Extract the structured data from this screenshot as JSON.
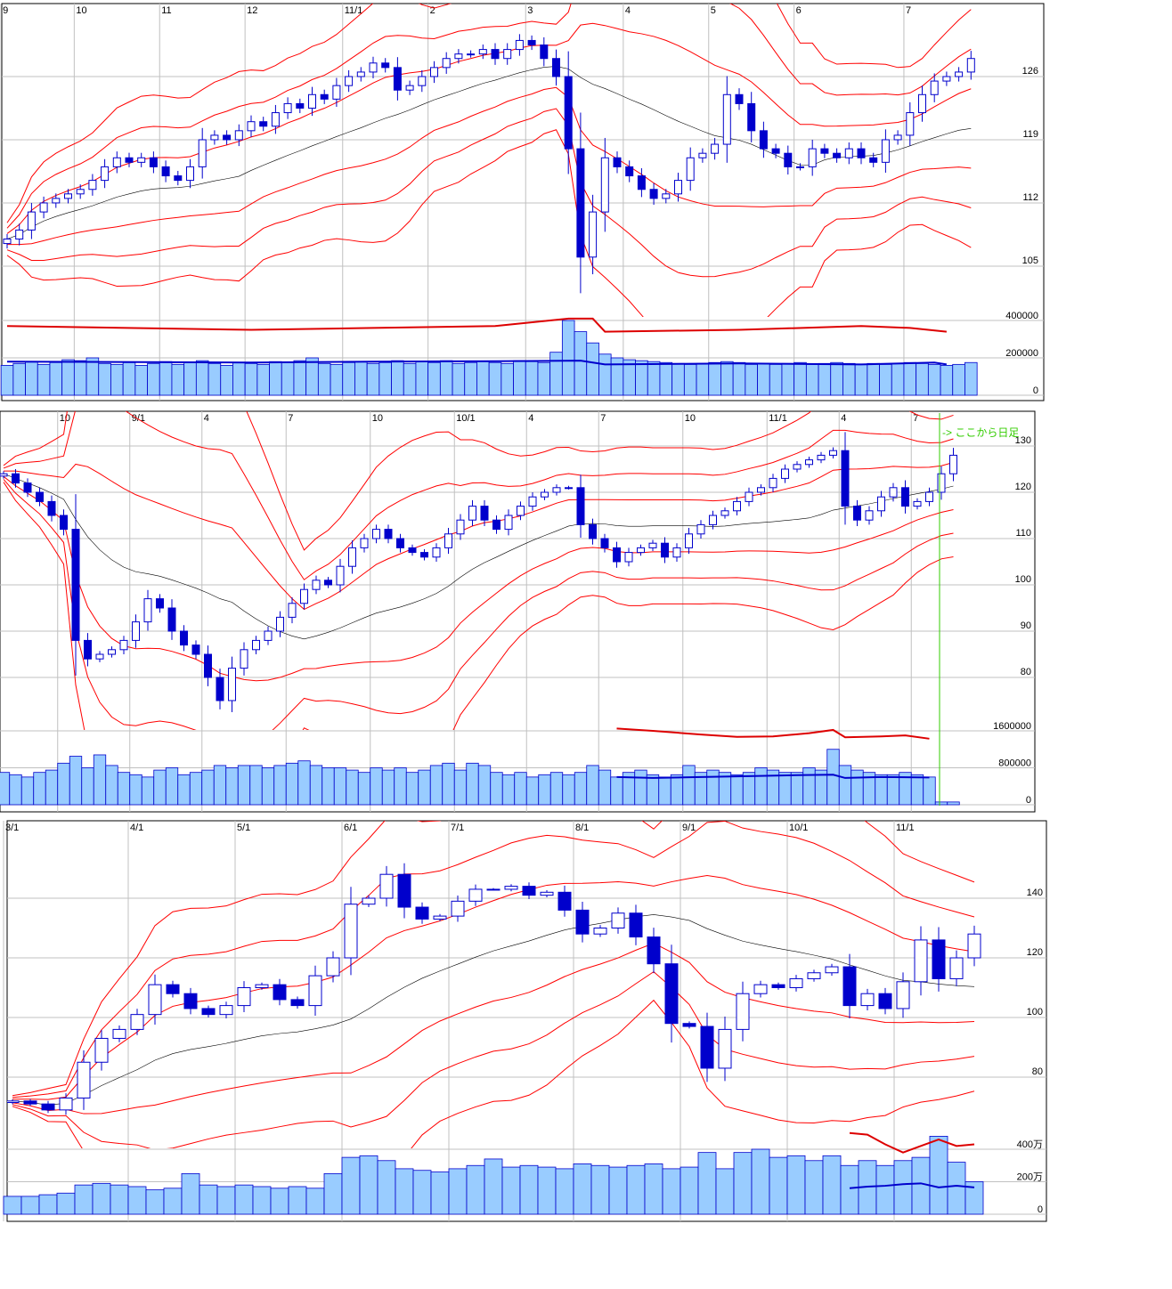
{
  "chart_data": [
    {
      "type": "candlestick",
      "title": "",
      "grid": true,
      "price_ticks": [
        126,
        119,
        112,
        105
      ],
      "volume_ticks": [
        {
          "v": 400000,
          "label": "400000"
        },
        {
          "v": 200000,
          "label": "200000"
        },
        {
          "v": 0,
          "label": "0"
        }
      ],
      "date_labels": [
        {
          "label": "9",
          "index": 0
        },
        {
          "label": "10",
          "index": 6
        },
        {
          "label": "11",
          "index": 13
        },
        {
          "label": "12",
          "index": 20
        },
        {
          "label": "11/1",
          "index": 28
        },
        {
          "label": "2",
          "index": 35
        },
        {
          "label": "3",
          "index": 43
        },
        {
          "label": "4",
          "index": 51
        },
        {
          "label": "5",
          "index": 58
        },
        {
          "label": "6",
          "index": 65
        },
        {
          "label": "7",
          "index": 74
        }
      ],
      "close": [
        108,
        109,
        111,
        112,
        112.5,
        113,
        113.5,
        114.5,
        116,
        117,
        116.5,
        117,
        116,
        115,
        114.5,
        116,
        119,
        119.5,
        119,
        120,
        121,
        120.5,
        122,
        123,
        122.5,
        124,
        123.5,
        125,
        126,
        126.5,
        127.5,
        127,
        124.5,
        125,
        126,
        127,
        128,
        128.5,
        128.5,
        129,
        128,
        129,
        130,
        129.5,
        128,
        126,
        118,
        106,
        111,
        117,
        116,
        115,
        113.5,
        112.5,
        113,
        114.5,
        117,
        117.5,
        118.5,
        124,
        123,
        120,
        118,
        117.5,
        116,
        116,
        118,
        117.5,
        117,
        118,
        117,
        116.5,
        119,
        119.5,
        122,
        124,
        125.5,
        126,
        126.5,
        128
      ],
      "volume": [
        160000,
        170000,
        180000,
        165000,
        175000,
        190000,
        185000,
        200000,
        170000,
        165000,
        175000,
        160000,
        170000,
        180000,
        165000,
        175000,
        185000,
        170000,
        160000,
        175000,
        170000,
        165000,
        180000,
        175000,
        185000,
        200000,
        170000,
        165000,
        175000,
        180000,
        170000,
        175000,
        185000,
        170000,
        180000,
        175000,
        185000,
        170000,
        175000,
        180000,
        175000,
        170000,
        185000,
        180000,
        175000,
        230000,
        400000,
        340000,
        280000,
        220000,
        200000,
        190000,
        185000,
        180000,
        175000,
        170000,
        165000,
        170000,
        175000,
        180000,
        175000,
        165000,
        170000,
        165000,
        170000,
        175000,
        165000,
        170000,
        175000,
        170000,
        165000,
        170000,
        165000,
        170000,
        175000,
        170000,
        165000,
        160000,
        165000,
        175000
      ],
      "volume_line_red": [
        [
          0,
          370000
        ],
        [
          20,
          350000
        ],
        [
          30,
          360000
        ],
        [
          40,
          370000
        ],
        [
          46,
          410000
        ],
        [
          48,
          410000
        ],
        [
          49,
          340000
        ],
        [
          60,
          350000
        ],
        [
          70,
          370000
        ],
        [
          74,
          360000
        ],
        [
          77,
          340000
        ]
      ],
      "volume_line_blue": [
        [
          0,
          180000
        ],
        [
          20,
          175000
        ],
        [
          30,
          180000
        ],
        [
          40,
          182000
        ],
        [
          47,
          185000
        ],
        [
          49,
          165000
        ],
        [
          60,
          170000
        ],
        [
          70,
          165000
        ],
        [
          76,
          175000
        ],
        [
          77,
          165000
        ]
      ],
      "ylim": [
        101,
        131
      ]
    },
    {
      "type": "candlestick",
      "title": "",
      "grid": true,
      "price_ticks": [
        130,
        120,
        110,
        100,
        90,
        80
      ],
      "volume_ticks": [
        {
          "v": 1600000,
          "label": "1600000"
        },
        {
          "v": 800000,
          "label": "800000"
        },
        {
          "v": 0,
          "label": "0"
        }
      ],
      "date_labels": [
        {
          "label": "10",
          "index": 5
        },
        {
          "label": "9/1",
          "index": 11
        },
        {
          "label": "4",
          "index": 17
        },
        {
          "label": "7",
          "index": 24
        },
        {
          "label": "10",
          "index": 31
        },
        {
          "label": "10/1",
          "index": 38
        },
        {
          "label": "4",
          "index": 44
        },
        {
          "label": "7",
          "index": 50
        },
        {
          "label": "10",
          "index": 57
        },
        {
          "label": "11/1",
          "index": 64
        },
        {
          "label": "4",
          "index": 70
        },
        {
          "label": "7",
          "index": 76
        }
      ],
      "annotation": "-> ここから日足",
      "annotation_color": "#33cc00",
      "close": [
        124,
        122,
        120,
        118,
        115,
        112,
        88,
        84,
        85,
        86,
        88,
        92,
        97,
        95,
        90,
        87,
        85,
        80,
        75,
        82,
        86,
        88,
        90,
        93,
        96,
        99,
        101,
        100,
        104,
        108,
        110,
        112,
        110,
        108,
        107,
        106,
        108,
        111,
        114,
        117,
        114,
        112,
        115,
        117,
        119,
        120,
        121,
        121,
        113,
        110,
        108,
        105,
        107,
        108,
        109,
        106,
        108,
        111,
        113,
        115,
        116,
        118,
        120,
        121,
        123,
        125,
        126,
        127,
        128,
        129,
        117,
        114,
        116,
        119,
        121,
        117,
        118,
        120,
        124,
        128
      ],
      "volume": [
        700000,
        650000,
        600000,
        700000,
        750000,
        900000,
        1050000,
        800000,
        1080000,
        850000,
        700000,
        650000,
        600000,
        750000,
        800000,
        650000,
        700000,
        750000,
        850000,
        800000,
        850000,
        850000,
        800000,
        850000,
        900000,
        950000,
        850000,
        800000,
        800000,
        750000,
        700000,
        800000,
        750000,
        800000,
        700000,
        750000,
        850000,
        900000,
        750000,
        900000,
        850000,
        700000,
        650000,
        700000,
        600000,
        650000,
        700000,
        650000,
        700000,
        850000,
        750000,
        600000,
        700000,
        750000,
        650000,
        600000,
        650000,
        850000,
        700000,
        750000,
        700000,
        650000,
        700000,
        800000,
        750000,
        700000,
        700000,
        800000,
        750000,
        1200000,
        850000,
        750000,
        700000,
        650000,
        650000,
        700000,
        650000,
        600000,
        60000,
        60000
      ],
      "volume_line_red": [
        [
          51,
          1650000
        ],
        [
          54,
          1600000
        ],
        [
          58,
          1520000
        ],
        [
          61,
          1470000
        ],
        [
          64,
          1480000
        ],
        [
          67,
          1550000
        ],
        [
          69,
          1620000
        ],
        [
          70,
          1460000
        ],
        [
          73,
          1480000
        ],
        [
          75,
          1500000
        ],
        [
          77,
          1430000
        ]
      ],
      "volume_line_blue": [
        [
          51,
          600000
        ],
        [
          54,
          580000
        ],
        [
          58,
          600000
        ],
        [
          62,
          620000
        ],
        [
          66,
          640000
        ],
        [
          69,
          650000
        ],
        [
          70,
          580000
        ],
        [
          73,
          600000
        ],
        [
          77,
          590000
        ]
      ],
      "ylim": [
        72,
        135
      ]
    },
    {
      "type": "candlestick",
      "title": "",
      "grid": true,
      "price_ticks": [
        140,
        120,
        100,
        80
      ],
      "volume_ticks": [
        {
          "v": 400,
          "label": "400万"
        },
        {
          "v": 200,
          "label": "200万"
        },
        {
          "v": 0,
          "label": "0"
        }
      ],
      "date_labels": [
        {
          "label": "3/1",
          "index": 0
        },
        {
          "label": "4/1",
          "index": 7
        },
        {
          "label": "5/1",
          "index": 13
        },
        {
          "label": "6/1",
          "index": 19
        },
        {
          "label": "7/1",
          "index": 25
        },
        {
          "label": "8/1",
          "index": 32
        },
        {
          "label": "9/1",
          "index": 38
        },
        {
          "label": "10/1",
          "index": 44
        },
        {
          "label": "11/1",
          "index": 50
        }
      ],
      "close": [
        72,
        71,
        69,
        73,
        85,
        93,
        96,
        101,
        111,
        108,
        103,
        101,
        104,
        110,
        111,
        106,
        104,
        114,
        120,
        138,
        140,
        148,
        137,
        133,
        134,
        139,
        143,
        143,
        144,
        141,
        142,
        136,
        128,
        130,
        135,
        127,
        118,
        98,
        97,
        83,
        96,
        108,
        111,
        110,
        113,
        115,
        117,
        104,
        108,
        103,
        112,
        126,
        113,
        120,
        128
      ],
      "volume": [
        110,
        110,
        120,
        130,
        180,
        190,
        180,
        170,
        150,
        160,
        250,
        180,
        170,
        180,
        170,
        160,
        170,
        160,
        250,
        350,
        360,
        330,
        280,
        270,
        260,
        280,
        300,
        340,
        290,
        300,
        290,
        280,
        310,
        300,
        290,
        300,
        310,
        280,
        290,
        380,
        280,
        380,
        400,
        350,
        360,
        330,
        360,
        300,
        330,
        300,
        330,
        350,
        480,
        320,
        200
      ],
      "volume_line_red": [
        [
          47,
          500
        ],
        [
          48,
          490
        ],
        [
          49,
          430
        ],
        [
          50,
          380
        ],
        [
          51,
          420
        ],
        [
          52,
          460
        ],
        [
          53,
          420
        ],
        [
          54,
          430
        ]
      ],
      "volume_line_blue": [
        [
          47,
          160
        ],
        [
          48,
          170
        ],
        [
          49,
          175
        ],
        [
          50,
          185
        ],
        [
          51,
          190
        ],
        [
          52,
          165
        ],
        [
          53,
          175
        ],
        [
          54,
          165
        ]
      ],
      "ylim": [
        62,
        160
      ]
    }
  ],
  "colors": {
    "up_body": "#ffffff",
    "candle_border": "#0000cc",
    "down_body": "#0000cc",
    "band": "#ff0000",
    "ma": "#000000",
    "volume_bar": "#99ccff",
    "volume_border": "#0000cc",
    "grid": "#c0c0c0"
  }
}
